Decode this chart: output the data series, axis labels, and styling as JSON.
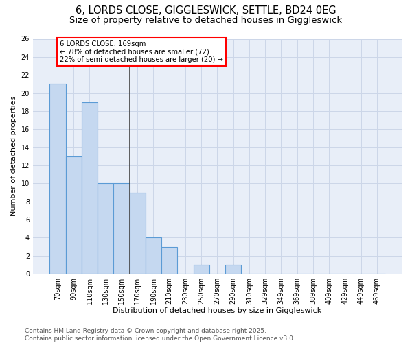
{
  "title_line1": "6, LORDS CLOSE, GIGGLESWICK, SETTLE, BD24 0EG",
  "title_line2": "Size of property relative to detached houses in Giggleswick",
  "xlabel": "Distribution of detached houses by size in Giggleswick",
  "ylabel": "Number of detached properties",
  "categories": [
    "70sqm",
    "90sqm",
    "110sqm",
    "130sqm",
    "150sqm",
    "170sqm",
    "190sqm",
    "210sqm",
    "230sqm",
    "250sqm",
    "270sqm",
    "290sqm",
    "310sqm",
    "329sqm",
    "349sqm",
    "369sqm",
    "389sqm",
    "409sqm",
    "429sqm",
    "449sqm",
    "469sqm"
  ],
  "values": [
    21,
    13,
    19,
    10,
    10,
    9,
    4,
    3,
    0,
    1,
    0,
    1,
    0,
    0,
    0,
    0,
    0,
    0,
    0,
    0,
    0
  ],
  "bar_color": "#c5d8f0",
  "bar_edge_color": "#5b9bd5",
  "bar_linewidth": 0.8,
  "vline_index": 5,
  "vline_color": "#444444",
  "vline_linewidth": 1.2,
  "annotation_text": "6 LORDS CLOSE: 169sqm\n← 78% of detached houses are smaller (72)\n22% of semi-detached houses are larger (20) →",
  "annotation_box_color": "white",
  "annotation_box_edge": "red",
  "ylim": [
    0,
    26
  ],
  "yticks": [
    0,
    2,
    4,
    6,
    8,
    10,
    12,
    14,
    16,
    18,
    20,
    22,
    24,
    26
  ],
  "grid_color": "#ccd6e8",
  "background_color": "#e8eef8",
  "footer_line1": "Contains HM Land Registry data © Crown copyright and database right 2025.",
  "footer_line2": "Contains public sector information licensed under the Open Government Licence v3.0.",
  "title_fontsize": 10.5,
  "subtitle_fontsize": 9.5,
  "label_fontsize": 8,
  "tick_fontsize": 7,
  "footer_fontsize": 6.5
}
